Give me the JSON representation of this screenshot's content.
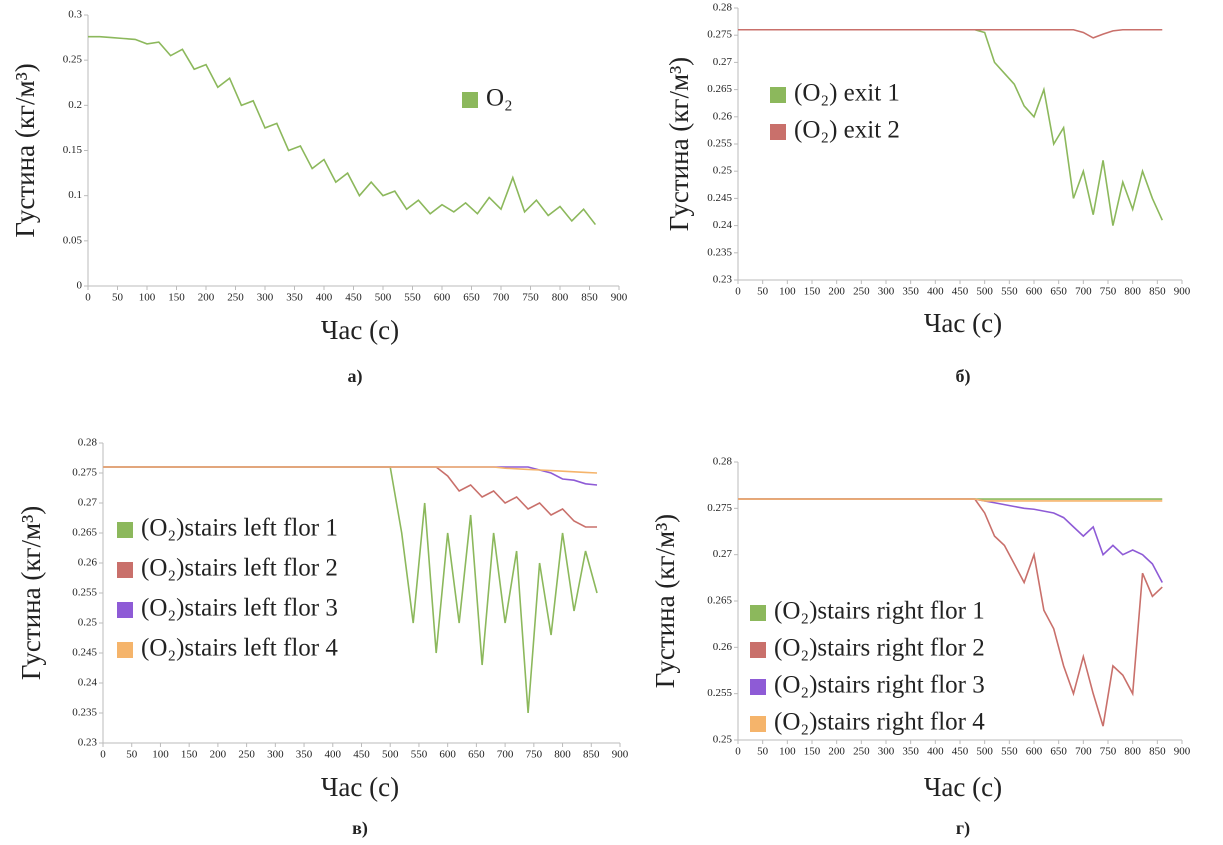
{
  "chart_data": [
    {
      "type": "line",
      "caption": "а)",
      "xlabel": "Час (с)",
      "ylabel": "Густина (кг/м³)",
      "legend": "upper right",
      "grid": false,
      "xlim": [
        0,
        900
      ],
      "xticks": [
        0,
        50,
        100,
        150,
        200,
        250,
        300,
        350,
        400,
        450,
        500,
        550,
        600,
        650,
        700,
        750,
        800,
        850,
        900
      ],
      "ylim": [
        0,
        0.3
      ],
      "yticks": [
        0,
        0.05,
        0.1,
        0.15,
        0.2,
        0.25,
        0.3
      ],
      "x": [
        0,
        20,
        40,
        60,
        80,
        100,
        120,
        140,
        160,
        180,
        200,
        220,
        240,
        260,
        280,
        300,
        320,
        340,
        360,
        380,
        400,
        420,
        440,
        460,
        480,
        500,
        520,
        540,
        560,
        580,
        600,
        620,
        640,
        660,
        680,
        700,
        720,
        740,
        760,
        780,
        800,
        820,
        840,
        860
      ],
      "series": [
        {
          "name": "O₂",
          "color": "#8cb85c",
          "values": [
            0.276,
            0.276,
            0.275,
            0.274,
            0.273,
            0.268,
            0.27,
            0.255,
            0.262,
            0.24,
            0.245,
            0.22,
            0.23,
            0.2,
            0.205,
            0.175,
            0.18,
            0.15,
            0.155,
            0.13,
            0.14,
            0.115,
            0.125,
            0.1,
            0.115,
            0.1,
            0.105,
            0.085,
            0.095,
            0.08,
            0.09,
            0.082,
            0.092,
            0.08,
            0.098,
            0.085,
            0.12,
            0.082,
            0.095,
            0.078,
            0.088,
            0.072,
            0.085,
            0.068
          ]
        }
      ]
    },
    {
      "type": "line",
      "caption": "б)",
      "xlabel": "Час (с)",
      "ylabel": "Густина (кг/м³)",
      "legend": "upper left",
      "grid": false,
      "xlim": [
        0,
        900
      ],
      "xticks": [
        0,
        50,
        100,
        150,
        200,
        250,
        300,
        350,
        400,
        450,
        500,
        550,
        600,
        650,
        700,
        750,
        800,
        850,
        900
      ],
      "ylim": [
        0.23,
        0.28
      ],
      "yticks": [
        0.23,
        0.235,
        0.24,
        0.245,
        0.25,
        0.255,
        0.26,
        0.265,
        0.27,
        0.275,
        0.28
      ],
      "x": [
        0,
        20,
        40,
        60,
        80,
        100,
        120,
        140,
        160,
        180,
        200,
        220,
        240,
        260,
        280,
        300,
        320,
        340,
        360,
        380,
        400,
        420,
        440,
        460,
        480,
        500,
        520,
        540,
        560,
        580,
        600,
        620,
        640,
        660,
        680,
        700,
        720,
        740,
        760,
        780,
        800,
        820,
        840,
        860
      ],
      "series": [
        {
          "name": "(O₂) exit 1",
          "color": "#8cb85c",
          "values": [
            0.276,
            0.276,
            0.276,
            0.276,
            0.276,
            0.276,
            0.276,
            0.276,
            0.276,
            0.276,
            0.276,
            0.276,
            0.276,
            0.276,
            0.276,
            0.276,
            0.276,
            0.276,
            0.276,
            0.276,
            0.276,
            0.276,
            0.276,
            0.276,
            0.276,
            0.2755,
            0.27,
            0.268,
            0.266,
            0.262,
            0.26,
            0.265,
            0.255,
            0.258,
            0.245,
            0.25,
            0.242,
            0.252,
            0.24,
            0.248,
            0.243,
            0.25,
            0.245,
            0.241
          ]
        },
        {
          "name": "(O₂) exit 2",
          "color": "#c9706b",
          "values": [
            0.276,
            0.276,
            0.276,
            0.276,
            0.276,
            0.276,
            0.276,
            0.276,
            0.276,
            0.276,
            0.276,
            0.276,
            0.276,
            0.276,
            0.276,
            0.276,
            0.276,
            0.276,
            0.276,
            0.276,
            0.276,
            0.276,
            0.276,
            0.276,
            0.276,
            0.276,
            0.276,
            0.276,
            0.276,
            0.276,
            0.276,
            0.276,
            0.276,
            0.276,
            0.276,
            0.2755,
            0.2745,
            0.2752,
            0.2758,
            0.276,
            0.276,
            0.276,
            0.276,
            0.276
          ]
        }
      ]
    },
    {
      "type": "line",
      "caption": "в)",
      "xlabel": "Час (с)",
      "ylabel": "Густина (кг/м³)",
      "legend": "center left",
      "grid": false,
      "xlim": [
        0,
        900
      ],
      "xticks": [
        0,
        50,
        100,
        150,
        200,
        250,
        300,
        350,
        400,
        450,
        500,
        550,
        600,
        650,
        700,
        750,
        800,
        850,
        900
      ],
      "ylim": [
        0.23,
        0.28
      ],
      "yticks": [
        0.23,
        0.235,
        0.24,
        0.245,
        0.25,
        0.255,
        0.26,
        0.265,
        0.27,
        0.275,
        0.28
      ],
      "x": [
        0,
        20,
        40,
        60,
        80,
        100,
        120,
        140,
        160,
        180,
        200,
        220,
        240,
        260,
        280,
        300,
        320,
        340,
        360,
        380,
        400,
        420,
        440,
        460,
        480,
        500,
        520,
        540,
        560,
        580,
        600,
        620,
        640,
        660,
        680,
        700,
        720,
        740,
        760,
        780,
        800,
        820,
        840,
        860
      ],
      "series": [
        {
          "name": "(O₂)stairs left flor 1",
          "color": "#8cb85c",
          "values": [
            0.276,
            0.276,
            0.276,
            0.276,
            0.276,
            0.276,
            0.276,
            0.276,
            0.276,
            0.276,
            0.276,
            0.276,
            0.276,
            0.276,
            0.276,
            0.276,
            0.276,
            0.276,
            0.276,
            0.276,
            0.276,
            0.276,
            0.276,
            0.276,
            0.276,
            0.276,
            0.265,
            0.25,
            0.27,
            0.245,
            0.265,
            0.25,
            0.268,
            0.243,
            0.265,
            0.25,
            0.262,
            0.235,
            0.26,
            0.248,
            0.265,
            0.252,
            0.262,
            0.255
          ]
        },
        {
          "name": "(O₂)stairs left flor 2",
          "color": "#c9706b",
          "values": [
            0.276,
            0.276,
            0.276,
            0.276,
            0.276,
            0.276,
            0.276,
            0.276,
            0.276,
            0.276,
            0.276,
            0.276,
            0.276,
            0.276,
            0.276,
            0.276,
            0.276,
            0.276,
            0.276,
            0.276,
            0.276,
            0.276,
            0.276,
            0.276,
            0.276,
            0.276,
            0.276,
            0.276,
            0.276,
            0.276,
            0.2745,
            0.272,
            0.273,
            0.271,
            0.272,
            0.27,
            0.271,
            0.269,
            0.27,
            0.268,
            0.269,
            0.267,
            0.266,
            0.266
          ]
        },
        {
          "name": "(O₂)stairs left flor 3",
          "color": "#8e5bd6",
          "values": [
            0.276,
            0.276,
            0.276,
            0.276,
            0.276,
            0.276,
            0.276,
            0.276,
            0.276,
            0.276,
            0.276,
            0.276,
            0.276,
            0.276,
            0.276,
            0.276,
            0.276,
            0.276,
            0.276,
            0.276,
            0.276,
            0.276,
            0.276,
            0.276,
            0.276,
            0.276,
            0.276,
            0.276,
            0.276,
            0.276,
            0.276,
            0.276,
            0.276,
            0.276,
            0.276,
            0.276,
            0.276,
            0.276,
            0.2755,
            0.275,
            0.274,
            0.2738,
            0.2732,
            0.273
          ]
        },
        {
          "name": "(O₂)stairs left flor 4",
          "color": "#f5b46b",
          "values": [
            0.276,
            0.276,
            0.276,
            0.276,
            0.276,
            0.276,
            0.276,
            0.276,
            0.276,
            0.276,
            0.276,
            0.276,
            0.276,
            0.276,
            0.276,
            0.276,
            0.276,
            0.276,
            0.276,
            0.276,
            0.276,
            0.276,
            0.276,
            0.276,
            0.276,
            0.276,
            0.276,
            0.276,
            0.276,
            0.276,
            0.276,
            0.276,
            0.276,
            0.276,
            0.276,
            0.2758,
            0.2757,
            0.2756,
            0.2755,
            0.2754,
            0.2753,
            0.2752,
            0.2751,
            0.275
          ]
        }
      ]
    },
    {
      "type": "line",
      "caption": "г)",
      "xlabel": "Час (с)",
      "ylabel": "Густина (кг/м³)",
      "legend": "lower left",
      "grid": false,
      "xlim": [
        0,
        900
      ],
      "xticks": [
        0,
        50,
        100,
        150,
        200,
        250,
        300,
        350,
        400,
        450,
        500,
        550,
        600,
        650,
        700,
        750,
        800,
        850,
        900
      ],
      "ylim": [
        0.25,
        0.28
      ],
      "yticks": [
        0.25,
        0.255,
        0.26,
        0.265,
        0.27,
        0.275,
        0.28
      ],
      "x": [
        0,
        20,
        40,
        60,
        80,
        100,
        120,
        140,
        160,
        180,
        200,
        220,
        240,
        260,
        280,
        300,
        320,
        340,
        360,
        380,
        400,
        420,
        440,
        460,
        480,
        500,
        520,
        540,
        560,
        580,
        600,
        620,
        640,
        660,
        680,
        700,
        720,
        740,
        760,
        780,
        800,
        820,
        840,
        860
      ],
      "series": [
        {
          "name": "(O₂)stairs right flor 1",
          "color": "#8cb85c",
          "values": [
            0.276,
            0.276,
            0.276,
            0.276,
            0.276,
            0.276,
            0.276,
            0.276,
            0.276,
            0.276,
            0.276,
            0.276,
            0.276,
            0.276,
            0.276,
            0.276,
            0.276,
            0.276,
            0.276,
            0.276,
            0.276,
            0.276,
            0.276,
            0.276,
            0.276,
            0.276,
            0.276,
            0.276,
            0.276,
            0.276,
            0.276,
            0.276,
            0.276,
            0.276,
            0.276,
            0.276,
            0.276,
            0.276,
            0.276,
            0.276,
            0.276,
            0.276,
            0.276,
            0.276
          ]
        },
        {
          "name": "(O₂)stairs right flor 2",
          "color": "#c9706b",
          "values": [
            0.276,
            0.276,
            0.276,
            0.276,
            0.276,
            0.276,
            0.276,
            0.276,
            0.276,
            0.276,
            0.276,
            0.276,
            0.276,
            0.276,
            0.276,
            0.276,
            0.276,
            0.276,
            0.276,
            0.276,
            0.276,
            0.276,
            0.276,
            0.276,
            0.276,
            0.2745,
            0.272,
            0.271,
            0.269,
            0.267,
            0.27,
            0.264,
            0.262,
            0.258,
            0.255,
            0.259,
            0.255,
            0.2515,
            0.258,
            0.257,
            0.255,
            0.268,
            0.2655,
            0.2665
          ]
        },
        {
          "name": "(O₂)stairs right flor 3",
          "color": "#8e5bd6",
          "values": [
            0.276,
            0.276,
            0.276,
            0.276,
            0.276,
            0.276,
            0.276,
            0.276,
            0.276,
            0.276,
            0.276,
            0.276,
            0.276,
            0.276,
            0.276,
            0.276,
            0.276,
            0.276,
            0.276,
            0.276,
            0.276,
            0.276,
            0.276,
            0.276,
            0.276,
            0.2758,
            0.2756,
            0.2754,
            0.2752,
            0.275,
            0.2749,
            0.2747,
            0.2745,
            0.274,
            0.273,
            0.272,
            0.273,
            0.27,
            0.271,
            0.27,
            0.2705,
            0.27,
            0.269,
            0.267
          ]
        },
        {
          "name": "(O₂)stairs right flor 4",
          "color": "#f5b46b",
          "values": [
            0.276,
            0.276,
            0.276,
            0.276,
            0.276,
            0.276,
            0.276,
            0.276,
            0.276,
            0.276,
            0.276,
            0.276,
            0.276,
            0.276,
            0.276,
            0.276,
            0.276,
            0.276,
            0.276,
            0.276,
            0.276,
            0.276,
            0.276,
            0.276,
            0.276,
            0.2758,
            0.2758,
            0.2758,
            0.2758,
            0.2758,
            0.2758,
            0.2758,
            0.2758,
            0.2758,
            0.2758,
            0.2758,
            0.2758,
            0.2758,
            0.2758,
            0.2758,
            0.2758,
            0.2758,
            0.2758,
            0.2758
          ]
        }
      ]
    }
  ]
}
